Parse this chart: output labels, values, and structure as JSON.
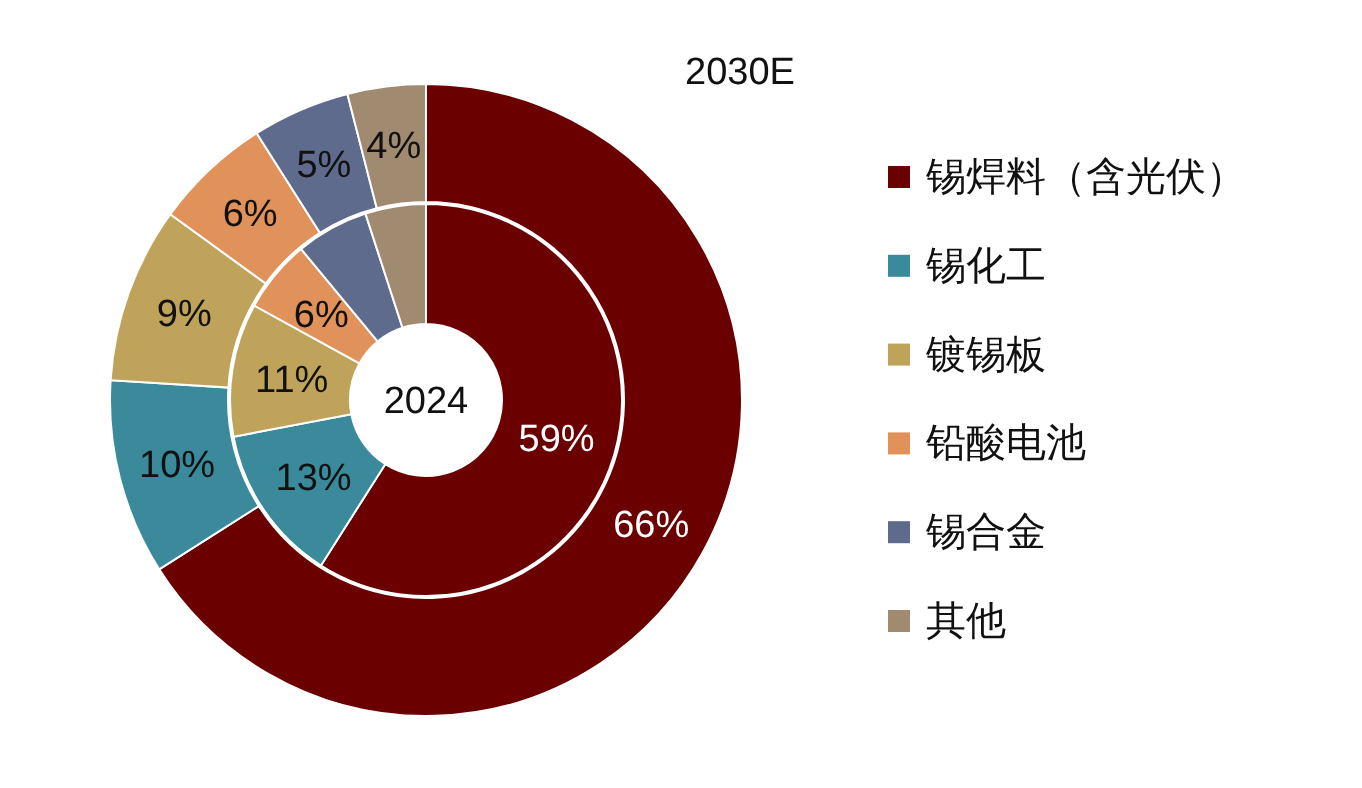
{
  "chart_data": {
    "type": "donut",
    "categories": [
      "锡焊料（含光伏）",
      "锡化工",
      "镀锡板",
      "铅酸电池",
      "锡合金",
      "其他"
    ],
    "colors": [
      "#6b0000",
      "#3a8a9c",
      "#bfa35a",
      "#e0925a",
      "#5f6b8c",
      "#a08a70"
    ],
    "series": [
      {
        "name": "2024",
        "values": [
          59,
          13,
          11,
          6,
          6,
          5
        ],
        "value_labels": [
          "59%",
          "13%",
          "11%",
          "6%",
          null,
          null
        ]
      },
      {
        "name": "2030E",
        "values": [
          66,
          10,
          9,
          6,
          5,
          4
        ],
        "value_labels": [
          "66%",
          "10%",
          "9%",
          "6%",
          "5%",
          "4%"
        ]
      }
    ],
    "legend": "right"
  }
}
